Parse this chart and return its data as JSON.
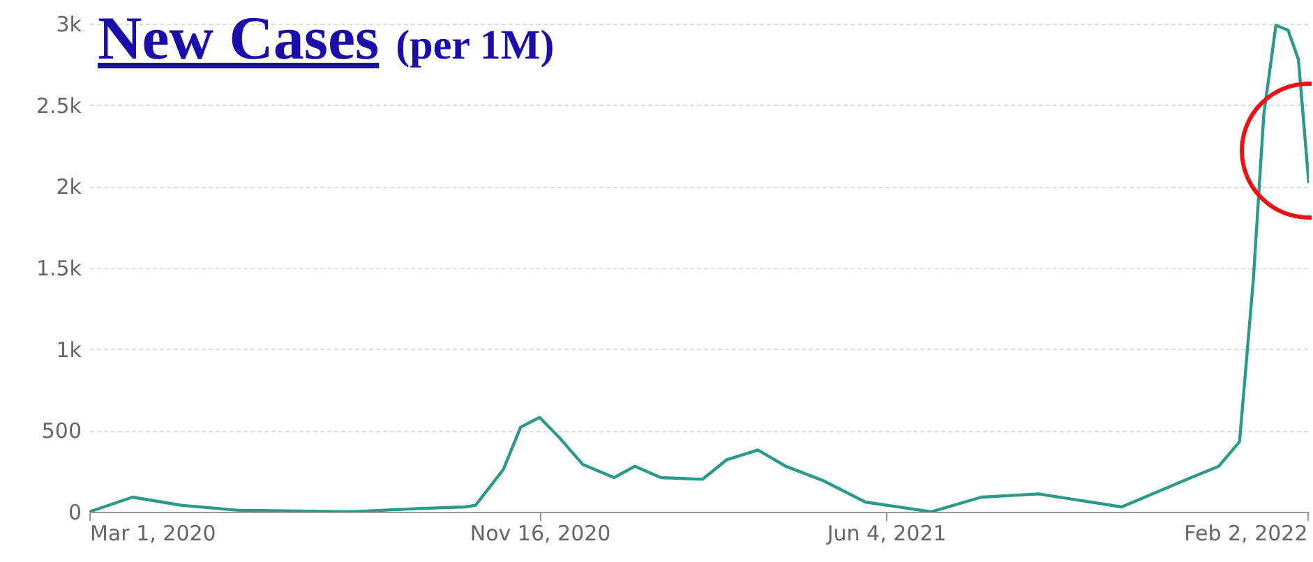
{
  "chart_data": {
    "type": "line",
    "title": "New Cases",
    "subtitle": "(per 1M)",
    "x": [
      "2020-03-01",
      "2020-03-26",
      "2020-04-23",
      "2020-05-25",
      "2020-07-29",
      "2020-09-07",
      "2020-10-04",
      "2020-10-10",
      "2020-10-26",
      "2020-11-05",
      "2020-11-16",
      "2020-11-27",
      "2020-12-11",
      "2020-12-29",
      "2021-01-10",
      "2021-01-25",
      "2021-02-18",
      "2021-03-04",
      "2021-03-22",
      "2021-04-07",
      "2021-04-29",
      "2021-05-23",
      "2021-06-30",
      "2021-07-29",
      "2021-08-31",
      "2021-10-18",
      "2021-11-27",
      "2021-12-13",
      "2021-12-25",
      "2022-01-02",
      "2022-01-08",
      "2022-01-15",
      "2022-01-22",
      "2022-01-28",
      "2022-02-03"
    ],
    "values": [
      0,
      90,
      40,
      10,
      0,
      20,
      30,
      40,
      260,
      520,
      580,
      460,
      290,
      210,
      280,
      210,
      200,
      320,
      380,
      280,
      190,
      60,
      0,
      90,
      110,
      30,
      210,
      280,
      430,
      1430,
      2440,
      2990,
      2960,
      2780,
      2020
    ],
    "color": "#2b9a8a",
    "xlim": [
      "2020-03-01",
      "2022-02-03"
    ],
    "xticks": [
      {
        "value": "2020-03-01",
        "label": "Mar 1, 2020"
      },
      {
        "value": "2020-11-16",
        "label": "Nov 16, 2020"
      },
      {
        "value": "2021-06-04",
        "label": "Jun 4, 2021"
      },
      {
        "value": "2022-02-02",
        "label": "Feb 2, 2022"
      }
    ],
    "ylim": [
      0,
      3000
    ],
    "yticks": [
      0,
      500,
      {
        "value": 1000,
        "label": "1k"
      },
      {
        "value": 1500,
        "label": "1.5k"
      },
      {
        "value": 2000,
        "label": "2k"
      },
      {
        "value": 2500,
        "label": "2.5k"
      },
      {
        "value": 3000,
        "label": "3k"
      }
    ],
    "grid": "y"
  }
}
